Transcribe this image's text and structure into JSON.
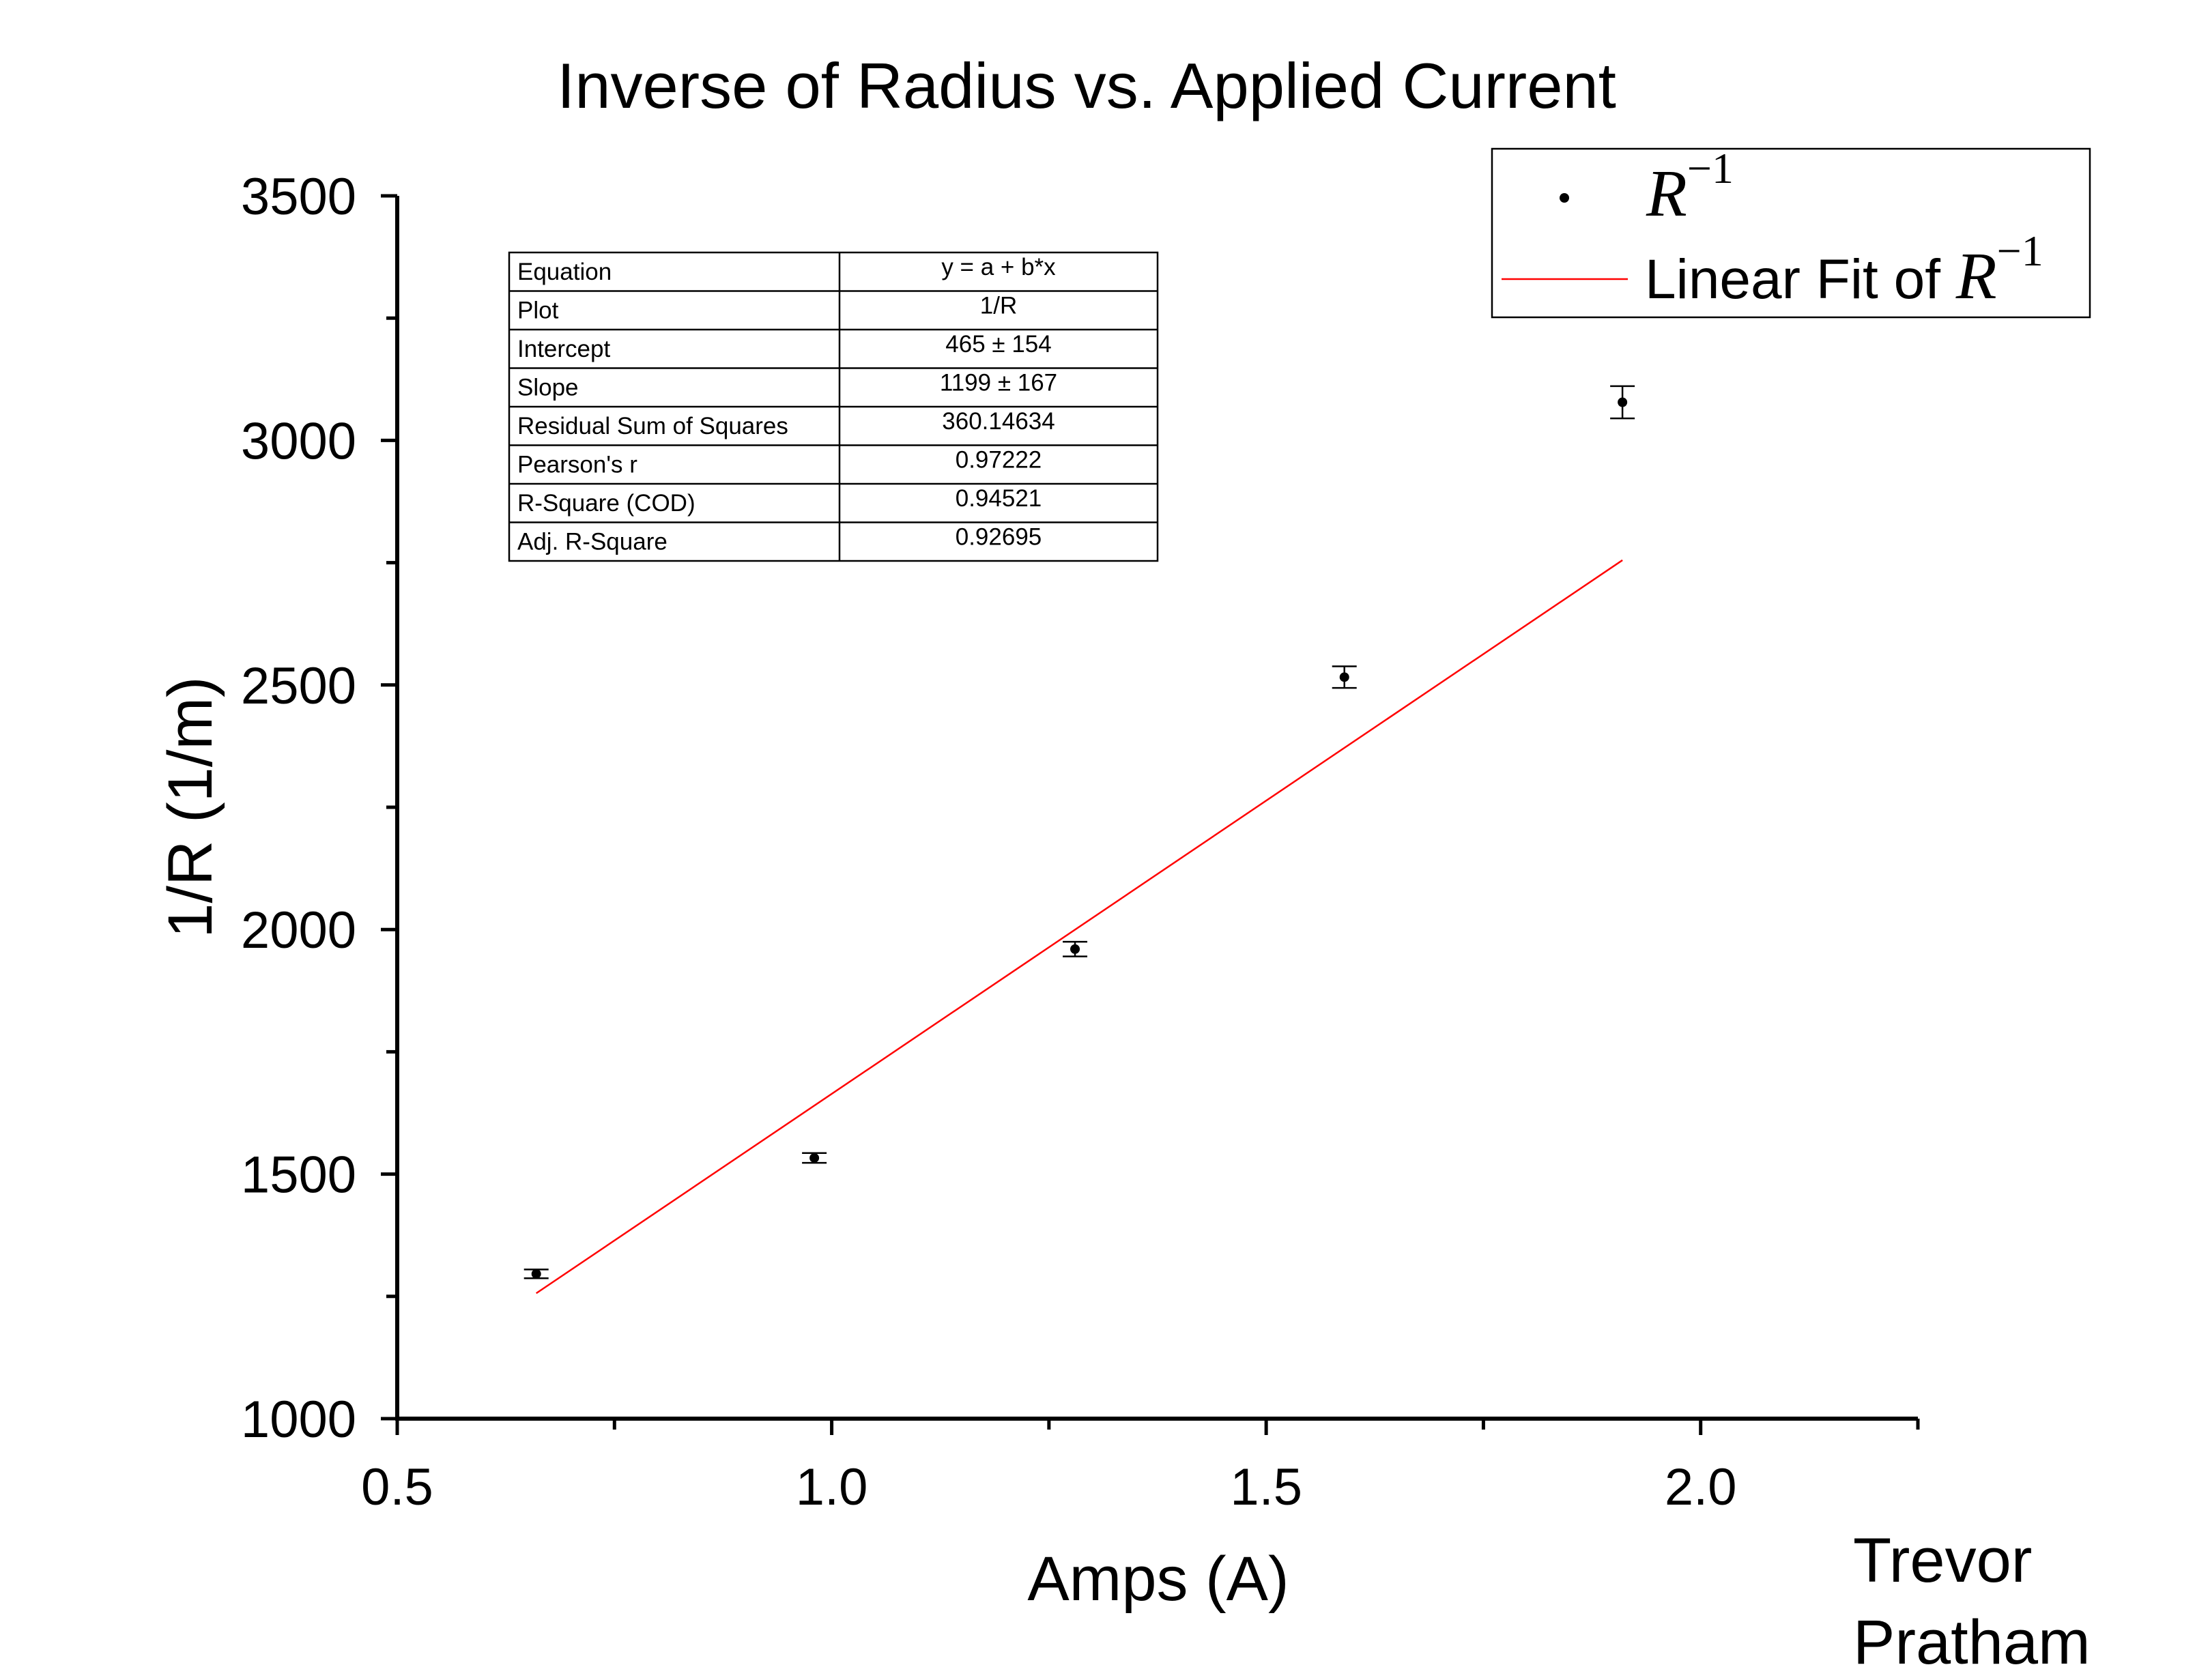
{
  "chart_data": {
    "type": "scatter",
    "title": "Inverse of Radius vs. Applied Current",
    "xlabel": "Amps (A)",
    "ylabel": "1/R (1/m)",
    "xlim": [
      0.5,
      2.25
    ],
    "ylim": [
      1000,
      3500
    ],
    "x_ticks": [
      0.5,
      1.0,
      1.5,
      2.0
    ],
    "x_tick_labels": [
      "0.5",
      "1.0",
      "1.5",
      "2.0"
    ],
    "y_ticks": [
      1000,
      1500,
      2000,
      2500,
      3000,
      3500
    ],
    "y_tick_labels": [
      "1000",
      "1500",
      "2000",
      "2500",
      "3000",
      "3500"
    ],
    "grid": false,
    "series": [
      {
        "name": "R^{-1}",
        "color": "#000000",
        "points": [
          {
            "x": 0.66,
            "y": 1296,
            "err": 9
          },
          {
            "x": 0.98,
            "y": 1533,
            "err": 10
          },
          {
            "x": 1.28,
            "y": 1960,
            "err": 15
          },
          {
            "x": 1.59,
            "y": 2516,
            "err": 22
          },
          {
            "x": 1.91,
            "y": 3078,
            "err": 33
          }
        ]
      }
    ],
    "fit": {
      "name": "Linear Fit of R^{-1}",
      "color": "#ff0000",
      "x_start": 0.66,
      "x_end": 1.91,
      "intercept": 465,
      "slope": 1199
    },
    "legend": {
      "position": "top-right",
      "entries": [
        {
          "label_prefix": "",
          "symbol": "point",
          "math": "R",
          "sup": "−1"
        },
        {
          "label_prefix": "Linear Fit of ",
          "symbol": "line",
          "math": "R",
          "sup": "−1"
        }
      ]
    },
    "fit_table": {
      "rows": [
        {
          "label": "Equation",
          "value": "y = a + b*x"
        },
        {
          "label": "Plot",
          "value": "1/R"
        },
        {
          "label": "Intercept",
          "value": "465 ± 154"
        },
        {
          "label": "Slope",
          "value": "1199 ± 167"
        },
        {
          "label": "Residual Sum of Squares",
          "value": "360.14634"
        },
        {
          "label": "Pearson's r",
          "value": "0.97222"
        },
        {
          "label": "R-Square (COD)",
          "value": "0.94521"
        },
        {
          "label": "Adj. R-Square",
          "value": "0.92695"
        }
      ]
    },
    "annotation": [
      "Trevor",
      "Pratham"
    ]
  }
}
